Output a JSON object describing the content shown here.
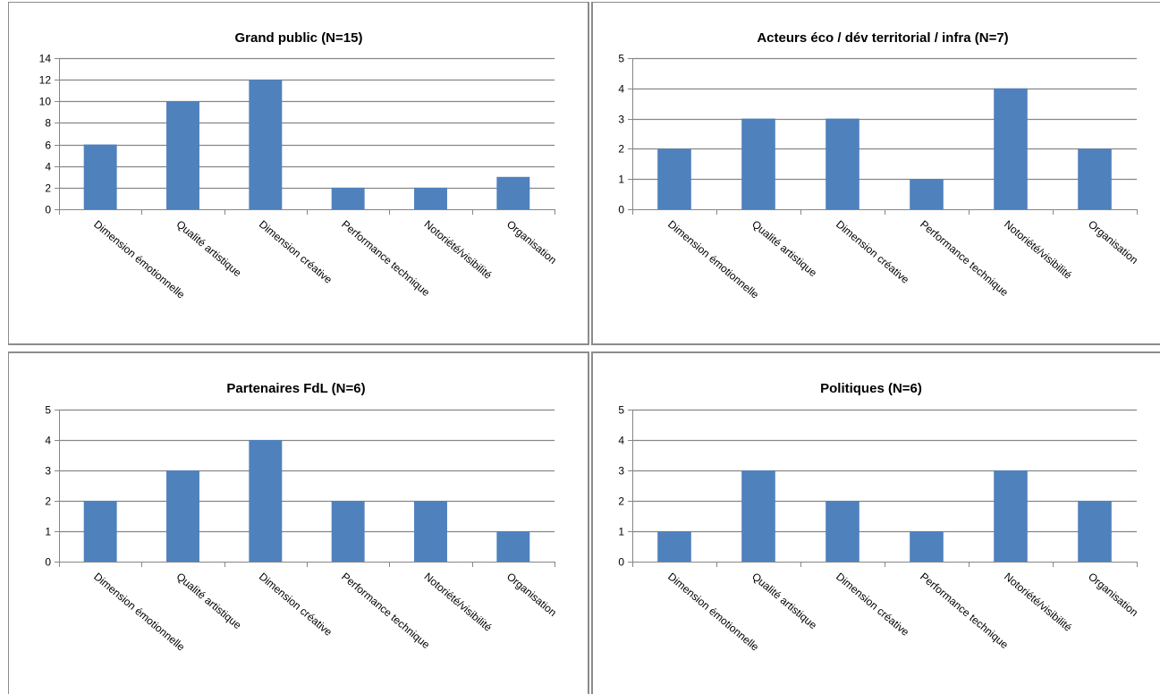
{
  "style": {
    "bar_color": "#4f81bd",
    "grid_color": "#868686",
    "axis_color": "#868686",
    "border_color": "#8c8c8c"
  },
  "chart_data": [
    {
      "type": "bar",
      "title": "Grand public (N=15)",
      "categories": [
        "Dimension émotionnelle",
        "Qualité artistique",
        "Dimension créative",
        "Performance technique",
        "Notoriété/visibilité",
        "Organisation"
      ],
      "values": [
        6,
        10,
        12,
        2,
        2,
        3
      ],
      "ylim": [
        0,
        14
      ],
      "yticks": [
        0,
        2,
        4,
        6,
        8,
        10,
        12,
        14
      ],
      "grid": true,
      "legend": "none"
    },
    {
      "type": "bar",
      "title": "Acteurs éco / dév territorial / infra (N=7)",
      "categories": [
        "Dimension émotionnelle",
        "Qualité artistique",
        "Dimension créative",
        "Performance technique",
        "Notoriété/visibilité",
        "Organisation"
      ],
      "values": [
        2,
        3,
        3,
        1,
        4,
        2
      ],
      "ylim": [
        0,
        5
      ],
      "yticks": [
        0,
        1,
        2,
        3,
        4,
        5
      ],
      "grid": true,
      "legend": "none"
    },
    {
      "type": "bar",
      "title": "Partenaires FdL (N=6)",
      "categories": [
        "Dimension émotionnelle",
        "Qualité artistique",
        "Dimension créative",
        "Performance technique",
        "Notoriété/visibilité",
        "Organisation"
      ],
      "values": [
        2,
        3,
        4,
        2,
        2,
        1
      ],
      "ylim": [
        0,
        5
      ],
      "yticks": [
        0,
        1,
        2,
        3,
        4,
        5
      ],
      "grid": true,
      "legend": "none"
    },
    {
      "type": "bar",
      "title": "Politiques (N=6)",
      "categories": [
        "Dimension émotionnelle",
        "Qualité artistique",
        "Dimension créative",
        "Performance technique",
        "Notoriété/visibilité",
        "Organisation"
      ],
      "values": [
        1,
        3,
        2,
        1,
        3,
        2
      ],
      "ylim": [
        0,
        5
      ],
      "yticks": [
        0,
        1,
        2,
        3,
        4,
        5
      ],
      "grid": true,
      "legend": "none"
    }
  ]
}
